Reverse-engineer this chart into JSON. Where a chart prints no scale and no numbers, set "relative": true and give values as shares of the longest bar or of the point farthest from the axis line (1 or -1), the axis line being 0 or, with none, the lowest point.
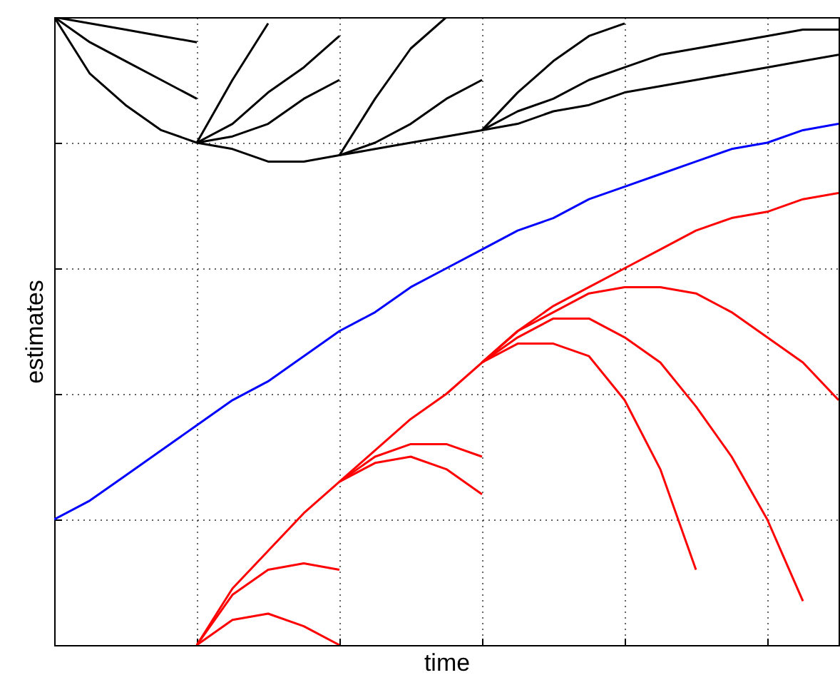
{
  "chart_data": {
    "type": "line",
    "relative": true,
    "xlabel": "time",
    "ylabel": "estimates",
    "grid": true,
    "tick_labels": false,
    "marker": "none",
    "line_style": "solid",
    "categories": [
      null,
      null,
      null,
      null,
      null,
      null,
      null,
      null,
      null,
      null,
      null,
      null,
      null,
      null,
      null,
      null,
      null,
      null,
      null,
      null,
      null,
      null,
      null
    ],
    "series": [
      {
        "color": "#000000",
        "values": [
          1,
          0.91,
          0.86,
          0.82,
          0.8,
          0.79,
          0.77,
          0.77,
          0.78,
          0.79,
          0.8,
          0.81,
          0.82,
          0.83,
          0.85,
          0.86,
          0.88,
          0.89,
          0.9,
          0.91,
          0.92,
          0.93,
          0.94
        ]
      },
      {
        "color": "#000000",
        "values": [
          1,
          0.96,
          0.93,
          0.9,
          0.87,
          null,
          null,
          null,
          null,
          null,
          null,
          null,
          null,
          null,
          null,
          null,
          null,
          null,
          null,
          null,
          null,
          null,
          null
        ]
      },
      {
        "color": "#000000",
        "values": [
          1,
          0.99,
          0.98,
          0.97,
          0.96,
          null,
          null,
          null,
          null,
          null,
          null,
          null,
          null,
          null,
          null,
          null,
          null,
          null,
          null,
          null,
          null,
          null,
          null
        ]
      },
      {
        "color": "#000000",
        "values": [
          null,
          null,
          null,
          null,
          0.8,
          0.81,
          0.83,
          0.87,
          0.9,
          null,
          null,
          null,
          null,
          null,
          null,
          null,
          null,
          null,
          null,
          null,
          null,
          null,
          null
        ]
      },
      {
        "color": "#000000",
        "values": [
          null,
          null,
          null,
          null,
          0.8,
          0.83,
          0.88,
          0.92,
          0.97,
          null,
          null,
          null,
          null,
          null,
          null,
          null,
          null,
          null,
          null,
          null,
          null,
          null,
          null
        ]
      },
      {
        "color": "#000000",
        "values": [
          null,
          null,
          null,
          null,
          0.8,
          0.9,
          0.99,
          null,
          null,
          null,
          null,
          null,
          null,
          null,
          null,
          null,
          null,
          null,
          null,
          null,
          null,
          null,
          null
        ]
      },
      {
        "color": "#000000",
        "values": [
          null,
          null,
          null,
          null,
          null,
          null,
          null,
          null,
          0.78,
          0.8,
          0.83,
          0.87,
          0.9,
          null,
          null,
          null,
          null,
          null,
          null,
          null,
          null,
          null,
          null
        ]
      },
      {
        "color": "#000000",
        "values": [
          null,
          null,
          null,
          null,
          null,
          null,
          null,
          null,
          0.78,
          0.87,
          0.95,
          1,
          null,
          null,
          null,
          null,
          null,
          null,
          null,
          null,
          null,
          null,
          null
        ]
      },
      {
        "color": "#000000",
        "values": [
          null,
          null,
          null,
          null,
          null,
          null,
          null,
          null,
          null,
          null,
          null,
          null,
          0.82,
          0.85,
          0.87,
          0.9,
          0.92,
          0.94,
          0.95,
          0.96,
          0.97,
          0.98,
          0.98
        ]
      },
      {
        "color": "#000000",
        "values": [
          null,
          null,
          null,
          null,
          null,
          null,
          null,
          null,
          null,
          null,
          null,
          null,
          0.82,
          0.88,
          0.93,
          0.97,
          0.99,
          null,
          null,
          null,
          null,
          null,
          null
        ]
      },
      {
        "color": "#0000ff",
        "values": [
          0.2,
          0.23,
          0.27,
          0.31,
          0.35,
          0.39,
          0.42,
          0.46,
          0.5,
          0.53,
          0.57,
          0.6,
          0.63,
          0.66,
          0.68,
          0.71,
          0.73,
          0.75,
          0.77,
          0.79,
          0.8,
          0.82,
          0.83
        ]
      },
      {
        "color": "#ff0000",
        "values": [
          null,
          null,
          null,
          null,
          0,
          0.09,
          0.15,
          0.21,
          0.26,
          0.31,
          0.36,
          0.4,
          0.45,
          0.5,
          0.54,
          0.57,
          0.6,
          0.63,
          0.66,
          0.68,
          0.69,
          0.71,
          0.72
        ]
      },
      {
        "color": "#ff0000",
        "values": [
          null,
          null,
          null,
          null,
          0,
          0.08,
          0.12,
          0.13,
          0.12,
          null,
          null,
          null,
          null,
          null,
          null,
          null,
          null,
          null,
          null,
          null,
          null,
          null,
          null
        ]
      },
      {
        "color": "#ff0000",
        "values": [
          null,
          null,
          null,
          null,
          0,
          0.04,
          0.05,
          0.03,
          0,
          null,
          null,
          null,
          null,
          null,
          null,
          null,
          null,
          null,
          null,
          null,
          null,
          null,
          null
        ]
      },
      {
        "color": "#ff0000",
        "values": [
          null,
          null,
          null,
          null,
          null,
          null,
          null,
          null,
          0.26,
          0.3,
          0.32,
          0.32,
          0.3,
          null,
          null,
          null,
          null,
          null,
          null,
          null,
          null,
          null,
          null
        ]
      },
      {
        "color": "#ff0000",
        "values": [
          null,
          null,
          null,
          null,
          null,
          null,
          null,
          null,
          0.26,
          0.29,
          0.3,
          0.28,
          0.24,
          null,
          null,
          null,
          null,
          null,
          null,
          null,
          null,
          null,
          null
        ]
      },
      {
        "color": "#ff0000",
        "values": [
          null,
          null,
          null,
          null,
          null,
          null,
          null,
          null,
          null,
          null,
          null,
          null,
          0.45,
          0.5,
          0.53,
          0.56,
          0.57,
          0.57,
          0.56,
          0.53,
          0.49,
          0.45,
          0.39
        ]
      },
      {
        "color": "#ff0000",
        "values": [
          null,
          null,
          null,
          null,
          null,
          null,
          null,
          null,
          null,
          null,
          null,
          null,
          0.45,
          0.49,
          0.52,
          0.52,
          0.49,
          0.45,
          0.38,
          0.3,
          0.2,
          0.07,
          null
        ]
      },
      {
        "color": "#ff0000",
        "values": [
          null,
          null,
          null,
          null,
          null,
          null,
          null,
          null,
          null,
          null,
          null,
          null,
          0.45,
          0.48,
          0.48,
          0.46,
          0.39,
          0.28,
          0.12,
          null,
          null,
          null,
          null
        ]
      }
    ]
  }
}
